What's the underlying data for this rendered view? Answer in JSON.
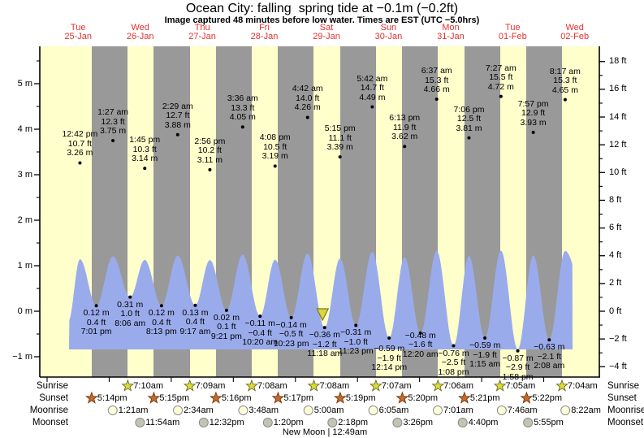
{
  "title": "Ocean City: falling  spring tide at −0.1m (−0.2ft)",
  "subtitle": "Image captured 48 minutes before low water. Times are EST (UTC −5.0hrs)",
  "colors": {
    "day_band": "#ffffcc",
    "night_band": "#999999",
    "wave": "#9aabec",
    "heading_red": "#e83030",
    "sunrise_star": "#d9dc3a",
    "sunrise_star_edge": "#6b6b1f",
    "sunset_star": "#c9682a",
    "sunset_star_edge": "#74380e",
    "moonrise_circle": "#ffffd8",
    "moonset_circle": "#c4c4b4",
    "moon_edge": "#8a8a8a",
    "marker_fill": "#d8d840",
    "marker_edge": "#7a7a20"
  },
  "chart_data": {
    "type": "area",
    "title": "Ocean City: falling  spring tide at −0.1m (−0.2ft)",
    "x_axis_days": [
      {
        "name": "Tue",
        "date": "25-Jan"
      },
      {
        "name": "Wed",
        "date": "26-Jan"
      },
      {
        "name": "Thu",
        "date": "27-Jan"
      },
      {
        "name": "Fri",
        "date": "28-Jan"
      },
      {
        "name": "Sat",
        "date": "29-Jan"
      },
      {
        "name": "Sun",
        "date": "30-Jan"
      },
      {
        "name": "Mon",
        "date": "31-Jan"
      },
      {
        "name": "Tue",
        "date": "01-Feb"
      },
      {
        "name": "Wed",
        "date": "02-Feb"
      }
    ],
    "y_axis_left": {
      "unit": "m",
      "major_ticks": [
        5,
        4,
        3,
        2,
        1,
        0,
        -1
      ]
    },
    "y_axis_right": {
      "unit": "ft",
      "major_ticks": [
        18,
        16,
        14,
        12,
        10,
        8,
        6,
        4,
        2,
        0,
        -2,
        -4
      ]
    },
    "high_tides": [
      {
        "day": 0,
        "time": "12:42 pm",
        "ft": "10.7 ft",
        "m": "3.26 m"
      },
      {
        "day": 1,
        "time": "1:27 am",
        "ft": "12.3 ft",
        "m": "3.75 m"
      },
      {
        "day": 1,
        "time": "1:45 pm",
        "ft": "10.3 ft",
        "m": "3.14 m"
      },
      {
        "day": 2,
        "time": "2:29 am",
        "ft": "12.7 ft",
        "m": "3.88 m"
      },
      {
        "day": 2,
        "time": "2:56 pm",
        "ft": "10.2 ft",
        "m": "3.11 m"
      },
      {
        "day": 3,
        "time": "3:36 am",
        "ft": "13.3 ft",
        "m": "4.05 m"
      },
      {
        "day": 3,
        "time": "4:08 pm",
        "ft": "10.5 ft",
        "m": "3.19 m"
      },
      {
        "day": 4,
        "time": "4:42 am",
        "ft": "14.0 ft",
        "m": "4.26 m"
      },
      {
        "day": 4,
        "time": "5:15 pm",
        "ft": "11.1 ft",
        "m": "3.39 m"
      },
      {
        "day": 5,
        "time": "5:42 am",
        "ft": "14.7 ft",
        "m": "4.49 m"
      },
      {
        "day": 5,
        "time": "6:13 pm",
        "ft": "11.9 ft",
        "m": "3.62 m"
      },
      {
        "day": 6,
        "time": "6:37 am",
        "ft": "15.3 ft",
        "m": "4.66 m"
      },
      {
        "day": 6,
        "time": "7:06 pm",
        "ft": "12.5 ft",
        "m": "3.81 m"
      },
      {
        "day": 7,
        "time": "7:27 am",
        "ft": "15.5 ft",
        "m": "4.72 m"
      },
      {
        "day": 7,
        "time": "7:57 pm",
        "ft": "12.9 ft",
        "m": "3.93 m"
      },
      {
        "day": 8,
        "time": "8:17 am",
        "ft": "15.3 ft",
        "m": "4.65 m"
      }
    ],
    "low_tides": [
      {
        "day": 0,
        "time": "7:01 pm",
        "ft": "0.4 ft",
        "m": "0.12 m"
      },
      {
        "day": 1,
        "time": "8:06 am",
        "ft": "1.0 ft",
        "m": "0.31 m"
      },
      {
        "day": 1,
        "time": "8:13 pm",
        "ft": "0.4 ft",
        "m": "0.12 m"
      },
      {
        "day": 2,
        "time": "9:17 am",
        "ft": "0.4 ft",
        "m": "0.13 m"
      },
      {
        "day": 2,
        "time": "9:21 pm",
        "ft": "0.1 ft",
        "m": "0.02 m"
      },
      {
        "day": 3,
        "time": "10:20 am",
        "ft": "−0.4 ft",
        "m": "−0.11 m"
      },
      {
        "day": 3,
        "time": "10:23 pm",
        "ft": "−0.5 ft",
        "m": "−0.14 m"
      },
      {
        "day": 4,
        "time": "11:18 am",
        "ft": "−1.2 ft",
        "m": "−0.36 m"
      },
      {
        "day": 4,
        "time": "11:23 pm",
        "ft": "−1.0 ft",
        "m": "−0.31 m"
      },
      {
        "day": 5,
        "time": "12:14 pm",
        "ft": "−1.9 ft",
        "m": "−0.59 m"
      },
      {
        "day": 6,
        "time": "12:20 am",
        "ft": "−1.6 ft",
        "m": "−0.48 m"
      },
      {
        "day": 6,
        "time": "1:08 pm",
        "ft": "−2.5 ft",
        "m": "−0.76 m"
      },
      {
        "day": 7,
        "time": "1:15 am",
        "ft": "−1.9 ft",
        "m": "−0.59 m"
      },
      {
        "day": 7,
        "time": "1:58 pm",
        "ft": "−2.9 ft",
        "m": "−0.87 m"
      },
      {
        "day": 8,
        "time": "2:08 am",
        "ft": "−2.1 ft",
        "m": "−0.63 m"
      }
    ],
    "current_marker": {
      "relative_to_low_index": 7,
      "offset_minutes_before": 48
    },
    "sunrise": {
      "label": "Sunrise",
      "events": [
        {
          "day": 1,
          "time": "7:10am"
        },
        {
          "day": 2,
          "time": "7:09am"
        },
        {
          "day": 3,
          "time": "7:08am"
        },
        {
          "day": 4,
          "time": "7:08am"
        },
        {
          "day": 5,
          "time": "7:07am"
        },
        {
          "day": 6,
          "time": "7:06am"
        },
        {
          "day": 7,
          "time": "7:05am"
        },
        {
          "day": 8,
          "time": "7:04am"
        }
      ]
    },
    "sunset": {
      "label": "Sunset",
      "events": [
        {
          "day": 0,
          "time": "5:14pm"
        },
        {
          "day": 1,
          "time": "5:15pm"
        },
        {
          "day": 2,
          "time": "5:16pm"
        },
        {
          "day": 3,
          "time": "5:17pm"
        },
        {
          "day": 4,
          "time": "5:19pm"
        },
        {
          "day": 5,
          "time": "5:20pm"
        },
        {
          "day": 6,
          "time": "5:21pm"
        },
        {
          "day": 7,
          "time": "5:22pm"
        }
      ]
    },
    "moonrise": {
      "label": "Moonrise",
      "events": [
        {
          "day": 1,
          "time": "1:21am"
        },
        {
          "day": 2,
          "time": "2:34am"
        },
        {
          "day": 3,
          "time": "3:48am"
        },
        {
          "day": 4,
          "time": "5:00am"
        },
        {
          "day": 5,
          "time": "6:05am"
        },
        {
          "day": 6,
          "time": "7:01am"
        },
        {
          "day": 7,
          "time": "7:46am"
        },
        {
          "day": 8,
          "time": "8:22am"
        }
      ]
    },
    "moonset": {
      "label": "Moonset",
      "events": [
        {
          "day": 1,
          "time": "11:54am"
        },
        {
          "day": 2,
          "time": "12:32pm"
        },
        {
          "day": 3,
          "time": "1:20pm"
        },
        {
          "day": 4,
          "time": "2:18pm"
        },
        {
          "day": 5,
          "time": "3:26pm"
        },
        {
          "day": 6,
          "time": "4:40pm"
        },
        {
          "day": 7,
          "time": "5:55pm"
        }
      ]
    },
    "new_moon": "New Moon | 12:49am"
  }
}
